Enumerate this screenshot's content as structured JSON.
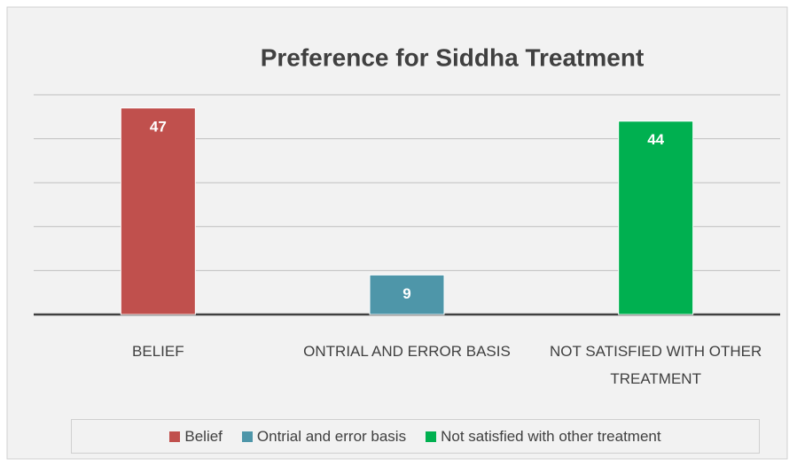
{
  "chart_data": {
    "type": "bar",
    "title": "Preference for Siddha Treatment",
    "categories": [
      "BELIEF",
      "ONTRIAL AND ERROR BASIS",
      "NOT SATISFIED WITH OTHER TREATMENT"
    ],
    "series": [
      {
        "name": "Belief",
        "color": "#c0504d",
        "values": [
          47,
          null,
          null
        ]
      },
      {
        "name": "Ontrial and error basis",
        "color": "#4e96a9",
        "values": [
          null,
          9,
          null
        ]
      },
      {
        "name": "Not satisfied with other treatment",
        "color": "#00b050",
        "values": [
          null,
          null,
          44
        ]
      }
    ],
    "ylim": [
      0,
      50
    ],
    "yticks": [
      0,
      10,
      20,
      30,
      40,
      50
    ],
    "grid": true,
    "legend": "bottom"
  }
}
